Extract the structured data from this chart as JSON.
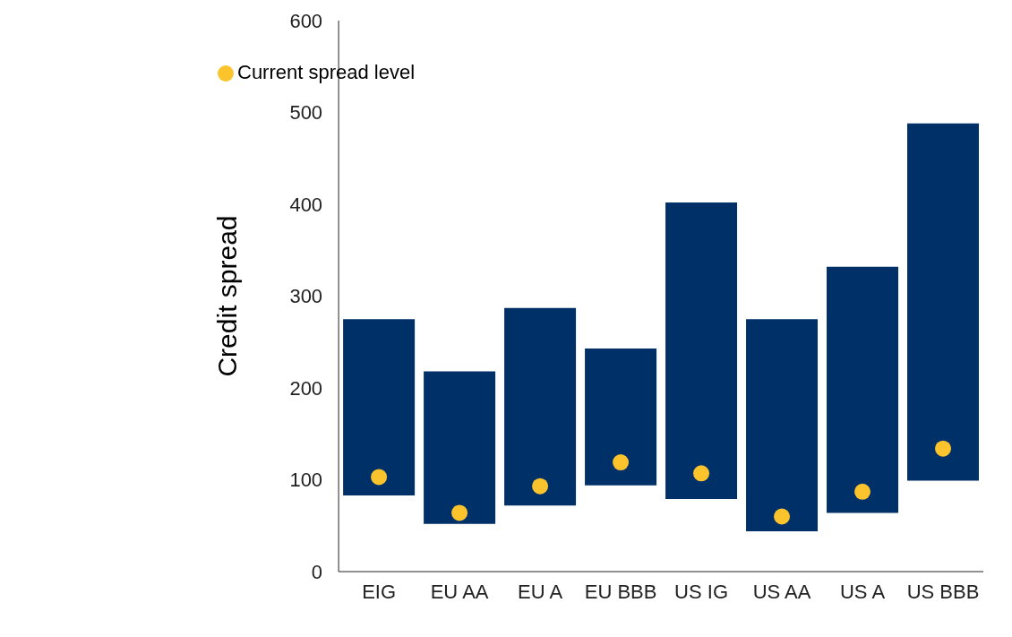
{
  "chart_data": {
    "type": "bar",
    "ylabel": "Credit spread",
    "categories": [
      "EIG",
      "EU AA",
      "EU A",
      "EU BBB",
      "US IG",
      "US AA",
      "US A",
      "US BBB"
    ],
    "ylim": [
      0,
      600
    ],
    "yticks": [
      0,
      100,
      200,
      300,
      400,
      500,
      600
    ],
    "grid": false,
    "legend": "top left",
    "series": [
      {
        "color": "#003068",
        "base": [
          83,
          52,
          72,
          94,
          79,
          44,
          64,
          99
        ],
        "values": [
          192,
          166,
          215,
          149,
          323,
          231,
          268,
          389
        ]
      },
      {
        "type": "scatter",
        "name": "Current spread level",
        "color": "#fbc42d",
        "marker": "circle",
        "x": [
          "EIG",
          "EU AA",
          "EU A",
          "EU BBB",
          "US IG",
          "US AA",
          "US A",
          "US BBB"
        ],
        "values": [
          103,
          64,
          93,
          119,
          107,
          60,
          87,
          134
        ]
      }
    ]
  }
}
